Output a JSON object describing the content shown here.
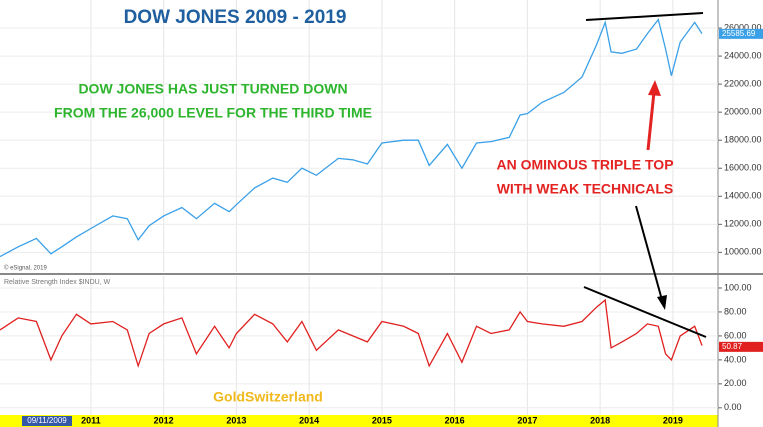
{
  "chart_data": [
    {
      "type": "line",
      "title": "DOW JONES  2009 - 2019",
      "annotations": [
        "DOW JONES HAS JUST TURNED DOWN",
        "FROM THE 26,000 LEVEL FOR THE THIRD TIME",
        "AN OMINOUS TRIPLE TOP",
        "WITH WEAK TECHNICALS"
      ],
      "source": "© eSignal, 2019",
      "x": [
        2009.75,
        2010.0,
        2010.25,
        2010.45,
        2010.6,
        2010.8,
        2011.0,
        2011.3,
        2011.5,
        2011.65,
        2011.8,
        2012.0,
        2012.25,
        2012.45,
        2012.7,
        2012.9,
        2013.0,
        2013.25,
        2013.5,
        2013.7,
        2013.9,
        2014.1,
        2014.4,
        2014.6,
        2014.8,
        2015.0,
        2015.3,
        2015.5,
        2015.65,
        2015.9,
        2016.1,
        2016.3,
        2016.5,
        2016.75,
        2016.9,
        2017.0,
        2017.2,
        2017.5,
        2017.75,
        2017.95,
        2018.07,
        2018.15,
        2018.3,
        2018.5,
        2018.65,
        2018.8,
        2018.9,
        2018.98,
        2019.1,
        2019.3,
        2019.4
      ],
      "series": [
        {
          "color": "#3aa0e8",
          "values": [
            9700,
            10400,
            11000,
            9900,
            10400,
            11100,
            11700,
            12600,
            12400,
            10900,
            11900,
            12600,
            13200,
            12400,
            13500,
            12900,
            13400,
            14600,
            15300,
            15000,
            16000,
            15500,
            16700,
            16600,
            16300,
            17800,
            18000,
            18000,
            16200,
            17700,
            16000,
            17800,
            17900,
            18200,
            19800,
            19900,
            20700,
            21400,
            22500,
            24800,
            26400,
            24300,
            24200,
            24500,
            25600,
            26600,
            24500,
            22600,
            25000,
            26400,
            25600
          ]
        }
      ],
      "last_value": 25585.69,
      "xlim": [
        2009.75,
        2019.62
      ],
      "ylim": [
        8600,
        28000
      ],
      "yticks": [
        {
          "value": 10000,
          "label": "10000.00"
        },
        {
          "value": 12000,
          "label": "12000.00"
        },
        {
          "value": 14000,
          "label": "14000.00"
        },
        {
          "value": 16000,
          "label": "16000.00"
        },
        {
          "value": 18000,
          "label": "18000.00"
        },
        {
          "value": 20000,
          "label": "20000.00"
        },
        {
          "value": 22000,
          "label": "22000.00"
        },
        {
          "value": 24000,
          "label": "24000.00"
        },
        {
          "value": 26000,
          "label": "26000.00"
        }
      ]
    },
    {
      "type": "line",
      "subtitle": "Relative Strength Index  $INDU, W",
      "watermark": "GoldSwitzerland",
      "start_label": "09/11/2009",
      "x": [
        2009.75,
        2010.0,
        2010.25,
        2010.45,
        2010.6,
        2010.8,
        2011.0,
        2011.3,
        2011.5,
        2011.65,
        2011.8,
        2012.0,
        2012.25,
        2012.45,
        2012.7,
        2012.9,
        2013.0,
        2013.25,
        2013.5,
        2013.7,
        2013.9,
        2014.1,
        2014.4,
        2014.6,
        2014.8,
        2015.0,
        2015.3,
        2015.5,
        2015.65,
        2015.9,
        2016.1,
        2016.3,
        2016.5,
        2016.75,
        2016.9,
        2017.0,
        2017.2,
        2017.5,
        2017.75,
        2017.95,
        2018.07,
        2018.15,
        2018.3,
        2018.5,
        2018.65,
        2018.8,
        2018.9,
        2018.98,
        2019.1,
        2019.3,
        2019.4
      ],
      "series": [
        {
          "color": "#e0201f",
          "values": [
            65,
            75,
            72,
            40,
            60,
            78,
            70,
            72,
            65,
            35,
            62,
            70,
            75,
            45,
            68,
            50,
            62,
            78,
            70,
            55,
            72,
            48,
            65,
            60,
            55,
            72,
            68,
            62,
            35,
            62,
            38,
            68,
            62,
            65,
            80,
            72,
            70,
            68,
            72,
            84,
            90,
            50,
            55,
            62,
            70,
            68,
            45,
            40,
            60,
            68,
            52
          ]
        }
      ],
      "last_value": 50.87,
      "xlim": [
        2009.75,
        2019.62
      ],
      "ylim": [
        -6,
        110
      ],
      "xticks": [
        2011,
        2012,
        2013,
        2014,
        2015,
        2016,
        2017,
        2018,
        2019
      ],
      "yticks": [
        {
          "value": 0,
          "label": "0.00"
        },
        {
          "value": 20,
          "label": "20.00"
        },
        {
          "value": 40,
          "label": "40.00"
        },
        {
          "value": 60,
          "label": "60.00"
        },
        {
          "value": 80,
          "label": "80.00"
        },
        {
          "value": 100,
          "label": "100.00"
        }
      ]
    }
  ]
}
